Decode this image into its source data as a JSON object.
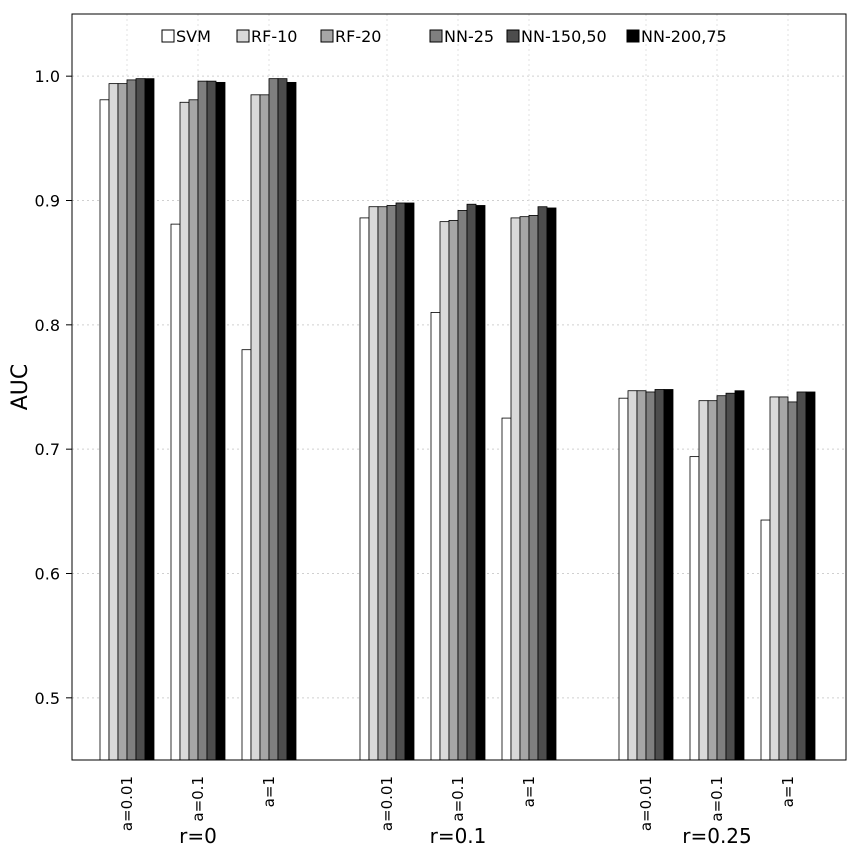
{
  "chart_data": {
    "type": "bar",
    "ylabel": "AUC",
    "ylim": [
      0.45,
      1.05
    ],
    "yticks": [
      0.5,
      0.6,
      0.7,
      0.8,
      0.9,
      1.0
    ],
    "ytick_labels": [
      "0.5",
      "0.6",
      "0.7",
      "0.8",
      "0.9",
      "1.0"
    ],
    "grid": true,
    "legend_position": "top",
    "series": [
      {
        "name": "SVM",
        "color": "#ffffff"
      },
      {
        "name": "RF-10",
        "color": "#d9d9d9"
      },
      {
        "name": "RF-20",
        "color": "#a6a6a6"
      },
      {
        "name": "NN-25",
        "color": "#7f7f7f"
      },
      {
        "name": "NN-150,50",
        "color": "#4d4d4d"
      },
      {
        "name": "NN-200,75",
        "color": "#000000"
      }
    ],
    "groups": [
      {
        "label": "r=0",
        "categories": [
          {
            "label": "a=0.01",
            "values": [
              0.981,
              0.994,
              0.994,
              0.997,
              0.998,
              0.998
            ]
          },
          {
            "label": "a=0.1",
            "values": [
              0.881,
              0.979,
              0.981,
              0.996,
              0.996,
              0.995
            ]
          },
          {
            "label": "a=1",
            "values": [
              0.78,
              0.985,
              0.985,
              0.998,
              0.998,
              0.995
            ]
          }
        ]
      },
      {
        "label": "r=0.1",
        "categories": [
          {
            "label": "a=0.01",
            "values": [
              0.886,
              0.895,
              0.895,
              0.896,
              0.898,
              0.898
            ]
          },
          {
            "label": "a=0.1",
            "values": [
              0.81,
              0.883,
              0.884,
              0.892,
              0.897,
              0.896
            ]
          },
          {
            "label": "a=1",
            "values": [
              0.725,
              0.886,
              0.887,
              0.888,
              0.895,
              0.894
            ]
          }
        ]
      },
      {
        "label": "r=0.25",
        "categories": [
          {
            "label": "a=0.01",
            "values": [
              0.741,
              0.747,
              0.747,
              0.746,
              0.748,
              0.748
            ]
          },
          {
            "label": "a=0.1",
            "values": [
              0.694,
              0.739,
              0.739,
              0.743,
              0.745,
              0.747
            ]
          },
          {
            "label": "a=1",
            "values": [
              0.643,
              0.742,
              0.742,
              0.738,
              0.746,
              0.746
            ]
          }
        ]
      }
    ]
  }
}
